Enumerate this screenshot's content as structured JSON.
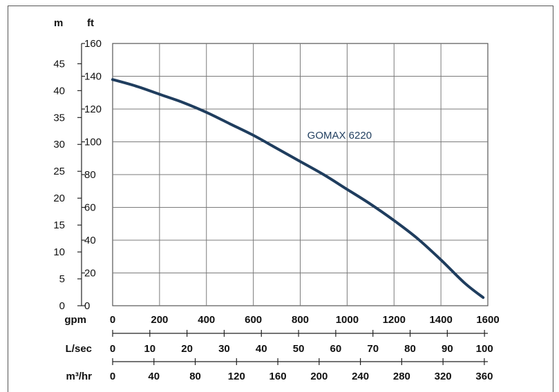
{
  "chart_data": {
    "type": "line",
    "series": [
      {
        "name": "GOMAX 6220",
        "x": [
          0,
          100,
          200,
          300,
          400,
          500,
          600,
          700,
          800,
          900,
          1000,
          1100,
          1200,
          1300,
          1400,
          1500,
          1580
        ],
        "y": [
          138,
          134,
          129,
          124,
          118,
          111,
          104,
          96,
          88,
          80,
          71,
          62,
          52,
          41,
          28,
          14,
          5
        ],
        "color": "#1f3d5e"
      }
    ],
    "xlim": [
      0,
      1600
    ],
    "ylim": [
      0,
      160
    ],
    "ylim_m": [
      0,
      48.77
    ],
    "grid": true,
    "axes": {
      "left_m": {
        "label": "m",
        "ticks": [
          "0",
          "5",
          "10",
          "15",
          "20",
          "25",
          "30",
          "35",
          "40",
          "45"
        ],
        "values": [
          0,
          5,
          10,
          15,
          20,
          25,
          30,
          35,
          40,
          45
        ]
      },
      "left_ft": {
        "label": "ft",
        "ticks": [
          "0",
          "20",
          "40",
          "60",
          "80",
          "100",
          "120",
          "140",
          "160"
        ],
        "values": [
          0,
          20,
          40,
          60,
          80,
          100,
          120,
          140,
          160
        ]
      },
      "bottom_gpm": {
        "label": "gpm",
        "ticks": [
          "0",
          "200",
          "400",
          "600",
          "800",
          "1000",
          "1200",
          "1400",
          "1600"
        ],
        "values": [
          0,
          200,
          400,
          600,
          800,
          1000,
          1200,
          1400,
          1600
        ]
      },
      "bottom_lsec": {
        "label": "L/sec",
        "ticks": [
          "0",
          "10",
          "20",
          "30",
          "40",
          "50",
          "60",
          "70",
          "80",
          "90",
          "100"
        ],
        "values": [
          0,
          10,
          20,
          30,
          40,
          50,
          60,
          70,
          80,
          90,
          100
        ],
        "max": 100.9
      },
      "bottom_m3hr": {
        "label": "m³/hr",
        "ticks": [
          "0",
          "40",
          "80",
          "120",
          "160",
          "200",
          "240",
          "280",
          "320",
          "360"
        ],
        "values": [
          0,
          40,
          80,
          120,
          160,
          200,
          240,
          280,
          320,
          360
        ],
        "max": 363.4
      }
    }
  }
}
